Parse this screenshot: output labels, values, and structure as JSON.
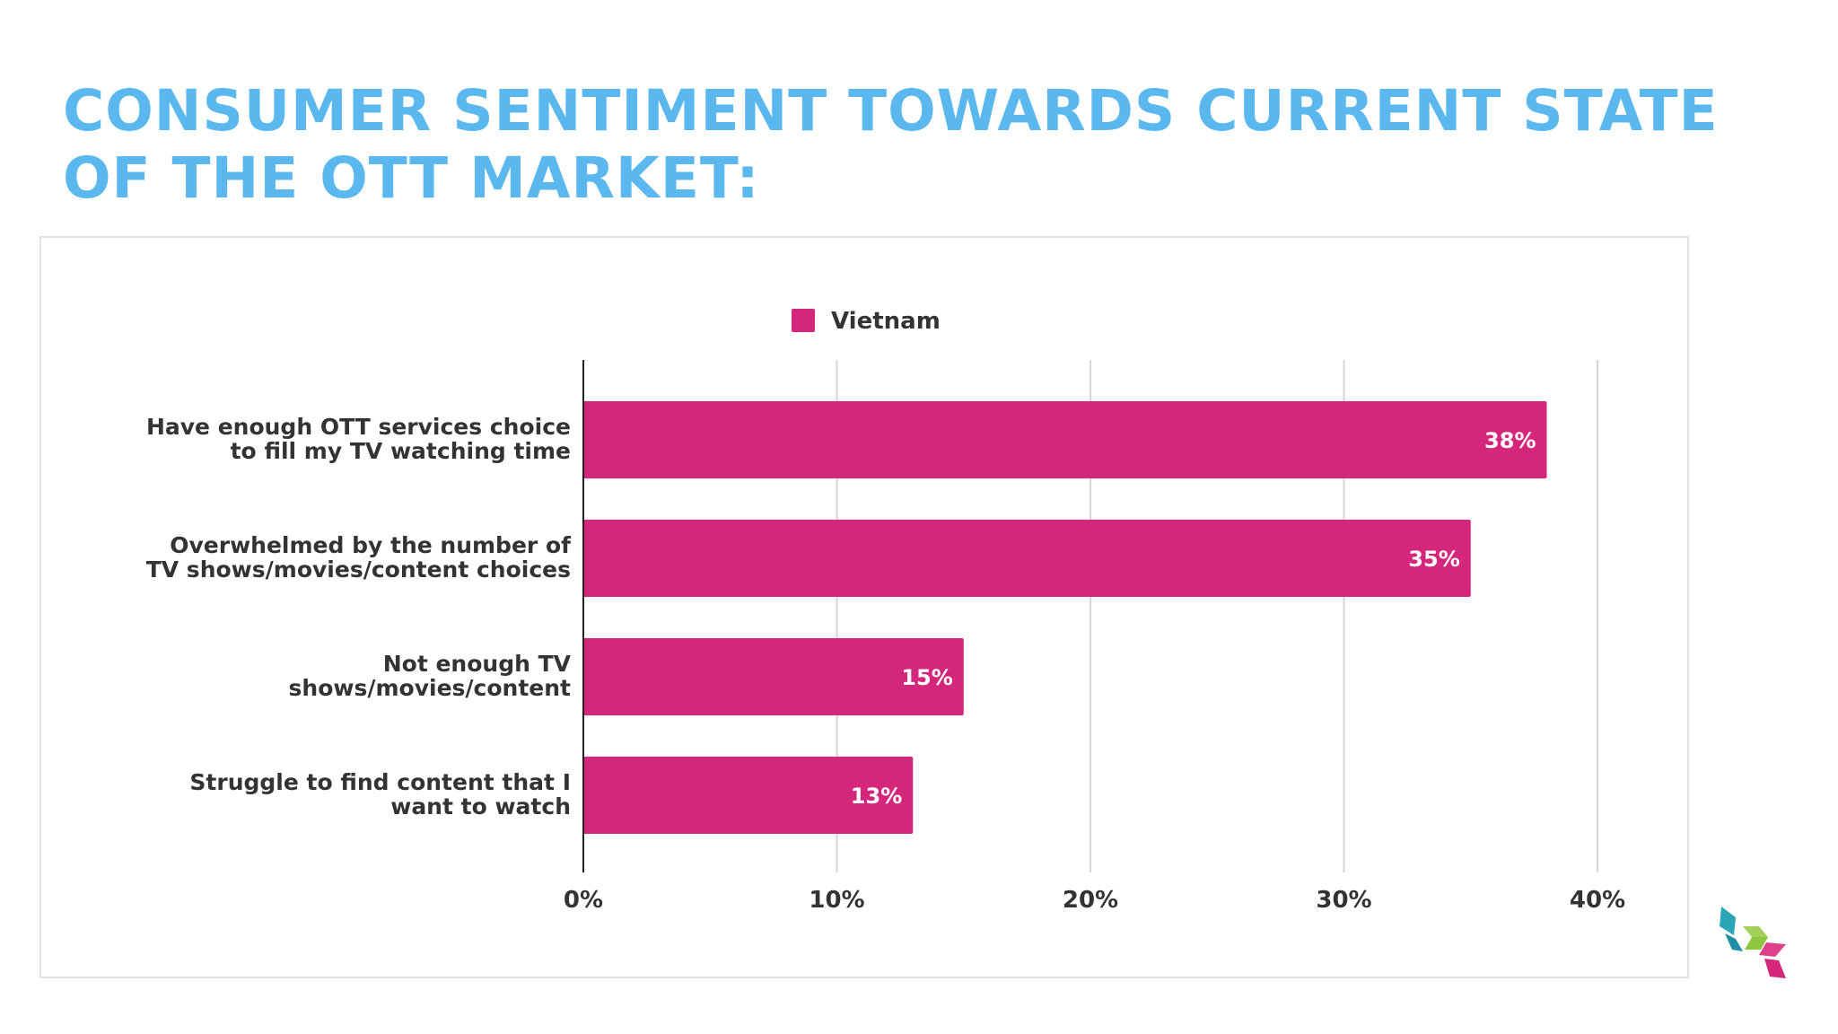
{
  "slide": {
    "title": "CONSUMER SENTIMENT TOWARDS CURRENT STATE OF THE OTT MARKET:"
  },
  "colors": {
    "title": "#5ab8ef",
    "bar": "#d4267a",
    "grid": "#d6d6d6",
    "axis": "#222222",
    "text": "#333333",
    "logo_teal": "#2aa6b8",
    "logo_green": "#8dc63f",
    "logo_pink": "#d4267a"
  },
  "chart_data": {
    "type": "bar",
    "orientation": "horizontal",
    "title": "",
    "xlabel": "",
    "ylabel": "",
    "categories": [
      [
        "Have enough OTT services choice",
        "to fill my TV watching time"
      ],
      [
        "Overwhelmed by the number of",
        "TV shows/movies/content choices"
      ],
      [
        "Not enough TV",
        "shows/movies/content"
      ],
      [
        "Struggle to find content that I",
        "want to watch"
      ]
    ],
    "series": [
      {
        "name": "Vietnam",
        "values": [
          38,
          35,
          15,
          13
        ]
      }
    ],
    "data_labels": [
      "38%",
      "35%",
      "15%",
      "13%"
    ],
    "xlim": [
      0,
      40
    ],
    "x_ticks": [
      0,
      10,
      20,
      30,
      40
    ],
    "x_tick_labels": [
      "0%",
      "10%",
      "20%",
      "30%",
      "40%"
    ],
    "grid": true,
    "legend": "top-center"
  }
}
